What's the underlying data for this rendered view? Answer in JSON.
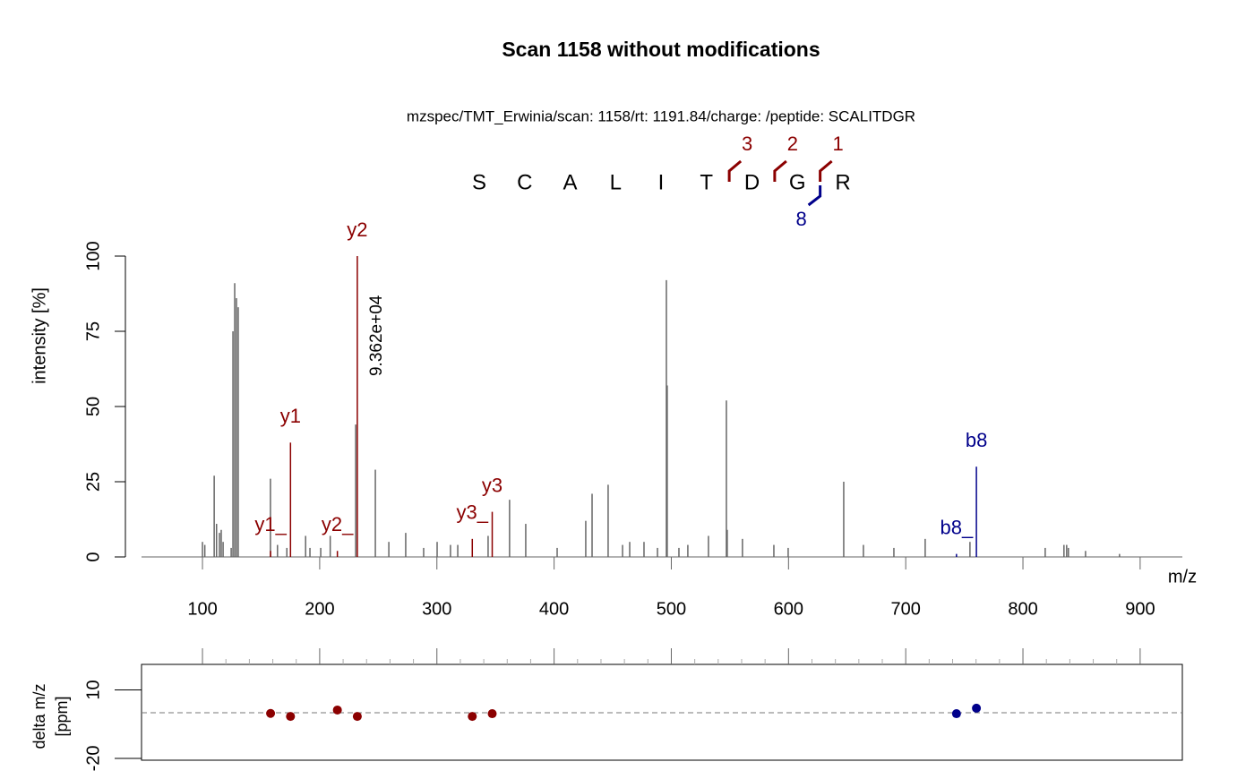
{
  "chart_data": [
    {
      "type": "spectrum",
      "title": "Scan 1158 without modifications",
      "subtitle": "mzspec/TMT_Erwinia/scan: 1158/rt: 1191.84/charge: /peptide: SCALITDGR",
      "xlabel": "m/z",
      "ylabel": "intensity [%]",
      "xlim": [
        48,
        936
      ],
      "ylim": [
        0,
        100
      ],
      "xticks": [
        100,
        200,
        300,
        400,
        500,
        600,
        700,
        800,
        900
      ],
      "yticks": [
        0,
        25,
        50,
        75,
        100
      ],
      "peaks": {
        "color": "#666666",
        "mz": [
          100,
          102,
          110,
          112,
          114.5,
          116,
          117.6,
          124.5,
          126,
          127.5,
          129,
          130.5,
          158,
          164,
          172,
          188,
          191.7,
          200.9,
          209,
          230.7,
          247.5,
          259,
          273.4,
          288.7,
          300.2,
          311.6,
          317.8,
          343.7,
          362,
          375.8,
          402.6,
          427,
          432.4,
          446.1,
          458.4,
          464.5,
          476.7,
          488.2,
          495.8,
          496.5,
          506.5,
          514.1,
          531.7,
          547,
          547.7,
          560.7,
          587.5,
          599.7,
          647.1,
          663.9,
          689.9,
          716.6,
          754.8,
          819,
          835,
          837.3,
          838.8,
          853.4,
          882.4
        ],
        "intensity": [
          5,
          4,
          27,
          11,
          8,
          9,
          5,
          3,
          75,
          91,
          86,
          83,
          26,
          4,
          3,
          7,
          3,
          3,
          7,
          44,
          29,
          5,
          8,
          3,
          5,
          4,
          4,
          7,
          19,
          11,
          3,
          12,
          21,
          24,
          4,
          5,
          5,
          3,
          92,
          57,
          3,
          4,
          7,
          52,
          9,
          6,
          4,
          3,
          25,
          4,
          3,
          6,
          5,
          3,
          4,
          4,
          3,
          2,
          1
        ]
      },
      "ions": [
        {
          "label": "y1_",
          "color": "#8b0000",
          "mz": 158.1,
          "intensity": 2
        },
        {
          "label": "y1",
          "color": "#8b0000",
          "mz": 175.1,
          "intensity": 38
        },
        {
          "label": "y2_",
          "color": "#8b0000",
          "mz": 215.1,
          "intensity": 2
        },
        {
          "label": "y2",
          "color": "#8b0000",
          "mz": 232.1,
          "intensity": 100
        },
        {
          "label": "y3_",
          "color": "#8b0000",
          "mz": 330.2,
          "intensity": 6
        },
        {
          "label": "y3",
          "color": "#8b0000",
          "mz": 347.2,
          "intensity": 15
        },
        {
          "label": "b8_",
          "color": "#00008b",
          "mz": 743.3,
          "intensity": 1
        },
        {
          "label": "b8",
          "color": "#00008b",
          "mz": 760.3,
          "intensity": 30
        }
      ],
      "max_peak_label": "9.362e+04",
      "sequence": {
        "residues": [
          "S",
          "C",
          "A",
          "L",
          "I",
          "T",
          "D",
          "G",
          "R"
        ],
        "y_fragments": [
          3,
          2,
          1
        ],
        "y_color": "#8b0000",
        "b_fragments": [
          8
        ],
        "b_color": "#00008b"
      }
    },
    {
      "type": "scatter",
      "ylabel": [
        "delta m/z",
        "[ppm]"
      ],
      "xlim": [
        48,
        936
      ],
      "ylim": [
        -20.8,
        21.2
      ],
      "xticks": [
        100,
        200,
        300,
        400,
        500,
        600,
        700,
        800,
        900
      ],
      "minor_xticks": [
        120,
        140,
        160,
        180,
        220,
        240,
        260,
        280,
        320,
        340,
        360,
        380,
        420,
        440,
        460,
        480,
        520,
        540,
        560,
        580,
        620,
        640,
        660,
        680,
        720,
        740,
        760,
        780,
        820,
        840,
        860,
        880
      ],
      "yticks": [
        10,
        -20
      ],
      "hline": 0,
      "x": [
        158.1,
        175.1,
        215.1,
        232.1,
        330.2,
        347.2,
        743.3,
        760.3
      ],
      "y": [
        -0.3,
        -1.6,
        1.2,
        -1.6,
        -1.6,
        -0.4,
        -0.4,
        2.0
      ],
      "colors": [
        "#8b0000",
        "#8b0000",
        "#8b0000",
        "#8b0000",
        "#8b0000",
        "#8b0000",
        "#00008b",
        "#00008b"
      ]
    }
  ]
}
